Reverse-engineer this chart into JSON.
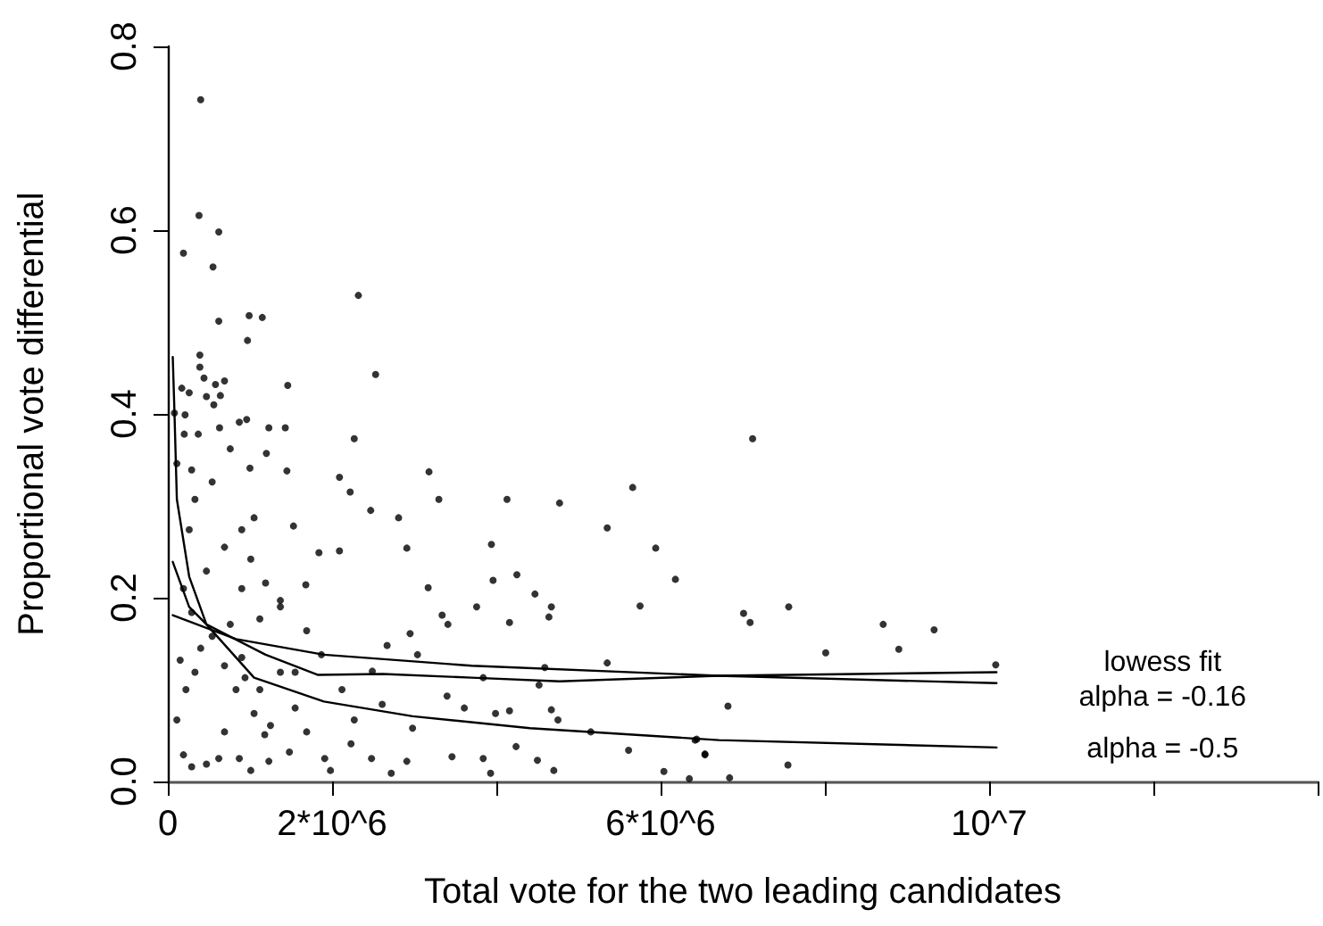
{
  "chart_data": {
    "type": "scatter",
    "xlabel": "Total vote for the two leading candidates",
    "ylabel": "Proportional vote differential",
    "xlim": [
      0,
      14000000
    ],
    "xticks": [
      0,
      {
        "value": 2000000,
        "label": "2*10^6"
      },
      {
        "value": 4000000,
        "label": null
      },
      {
        "value": 6000000,
        "label": "6*10^6"
      },
      {
        "value": 8000000,
        "label": null
      },
      {
        "value": 10000000,
        "label": "10^7"
      },
      {
        "value": 12000000,
        "label": null
      },
      {
        "value": 14000000,
        "label": null
      }
    ],
    "ylim": [
      0,
      0.8
    ],
    "yticks": [
      {
        "value": 0,
        "label": "0.0"
      },
      {
        "value": 0.2,
        "label": "0.2"
      },
      {
        "value": 0.4,
        "label": "0.4"
      },
      {
        "value": 0.6,
        "label": "0.6"
      },
      {
        "value": 0.8,
        "label": "0.8"
      }
    ],
    "grid": false,
    "legend": false,
    "series": [
      {
        "type": "scatter",
        "marker": "circle",
        "color": "#000000",
        "x": [
          400000,
          380000,
          620000,
          190000,
          550000,
          2320000,
          990000,
          1150000,
          620000,
          970000,
          390000,
          390000,
          2530000,
          440000,
          690000,
          580000,
          1460000,
          170000,
          260000,
          470000,
          640000,
          560000,
          210000,
          7120000,
          7010000,
          7090000,
          7560000,
          8710000,
          9330000,
          8010000,
          8900000,
          6820000,
          10080000,
          6540000,
          7550000,
          6420000,
          6840000,
          2270000,
          2090000,
          2220000,
          3180000,
          3300000,
          4130000,
          4770000,
          5660000,
          5350000,
          5940000,
          6180000,
          5750000,
          3940000,
          4250000,
          3960000,
          4470000,
          4670000,
          4640000,
          4160000,
          3760000,
          3170000,
          2910000,
          2470000,
          2810000,
          1530000,
          1450000,
          1000000,
          1200000,
          760000,
          2090000,
          1840000,
          1680000,
          1370000,
          1120000,
          3340000,
          3410000,
          2950000,
          2670000,
          3040000,
          2490000,
          3840000,
          4520000,
          5350000,
          4590000,
          3400000,
          3610000,
          3990000,
          4160000,
          4670000,
          4750000,
          5150000,
          5610000,
          6440000,
          6540000,
          6040000,
          6350000,
          4700000,
          4500000,
          4240000,
          3930000,
          3840000,
          3460000,
          2980000,
          2610000,
          2910000,
          2720000,
          2480000,
          2230000,
          1980000,
          2270000,
          2120000,
          1550000,
          1370000,
          1250000,
          1180000,
          1050000,
          900000,
          830000,
          690000,
          620000,
          470000,
          290000,
          190000,
          110000,
          220000,
          330000,
          150000,
          400000,
          540000,
          290000,
          190000,
          470000,
          690000,
          900000,
          260000,
          330000,
          110000,
          290000,
          540000,
          200000,
          370000,
          630000,
          870000,
          960000,
          1230000,
          1430000,
          1050000,
          1010000,
          1190000,
          1370000,
          900000,
          760000,
          690000,
          940000,
          1120000,
          1550000,
          1690000,
          1870000,
          1690000,
          1480000,
          1230000,
          1010000,
          870000,
          1910000,
          80000
        ],
        "values": [
          0.742,
          0.616,
          0.598,
          0.575,
          0.56,
          0.529,
          0.507,
          0.505,
          0.501,
          0.48,
          0.464,
          0.451,
          0.443,
          0.439,
          0.436,
          0.432,
          0.431,
          0.428,
          0.423,
          0.419,
          0.42,
          0.41,
          0.399,
          0.373,
          0.183,
          0.173,
          0.19,
          0.171,
          0.165,
          0.14,
          0.144,
          0.082,
          0.127,
          0.029,
          0.018,
          0.045,
          0.004,
          0.373,
          0.331,
          0.315,
          0.337,
          0.307,
          0.307,
          0.303,
          0.32,
          0.276,
          0.254,
          0.22,
          0.191,
          0.258,
          0.225,
          0.219,
          0.204,
          0.19,
          0.179,
          0.173,
          0.19,
          0.211,
          0.254,
          0.295,
          0.287,
          0.278,
          0.338,
          0.341,
          0.357,
          0.362,
          0.251,
          0.249,
          0.214,
          0.19,
          0.177,
          0.181,
          0.171,
          0.161,
          0.148,
          0.138,
          0.12,
          0.113,
          0.105,
          0.129,
          0.124,
          0.093,
          0.08,
          0.074,
          0.077,
          0.078,
          0.067,
          0.054,
          0.034,
          0.046,
          0.03,
          0.011,
          0.003,
          0.012,
          0.023,
          0.038,
          0.009,
          0.025,
          0.027,
          0.058,
          0.084,
          0.022,
          0.009,
          0.025,
          0.041,
          0.012,
          0.067,
          0.1,
          0.08,
          0.119,
          0.061,
          0.051,
          0.074,
          0.135,
          0.1,
          0.054,
          0.025,
          0.019,
          0.016,
          0.029,
          0.067,
          0.1,
          0.119,
          0.132,
          0.145,
          0.158,
          0.184,
          0.21,
          0.229,
          0.255,
          0.274,
          0.274,
          0.307,
          0.346,
          0.339,
          0.326,
          0.378,
          0.378,
          0.385,
          0.391,
          0.394,
          0.385,
          0.385,
          0.287,
          0.242,
          0.216,
          0.197,
          0.21,
          0.171,
          0.126,
          0.113,
          0.1,
          0.119,
          0.164,
          0.138,
          0.054,
          0.032,
          0.022,
          0.012,
          0.025,
          0.025,
          0.401
        ]
      },
      {
        "type": "line",
        "name": "lowess fit",
        "color": "#000000",
        "marker": "none",
        "line_style": "solid",
        "x": [
          60000,
          260000,
          470000,
          1190000,
          1830000,
          2620000,
          3700000,
          4770000,
          6700000,
          10090000
        ],
        "values": [
          0.239,
          0.19,
          0.171,
          0.138,
          0.116,
          0.117,
          0.113,
          0.109,
          0.115,
          0.119
        ]
      },
      {
        "type": "line",
        "name": "alpha = -0.16",
        "color": "#000000",
        "marker": "none",
        "line_style": "solid",
        "x": [
          60000,
          830000,
          1900000,
          3700000,
          6700000,
          10090000
        ],
        "values": [
          0.181,
          0.155,
          0.138,
          0.126,
          0.115,
          0.107
        ]
      },
      {
        "type": "line",
        "name": "alpha = -0.5",
        "color": "#000000",
        "marker": "none",
        "line_style": "solid",
        "x": [
          60000,
          80000,
          110000,
          260000,
          470000,
          1050000,
          1900000,
          2980000,
          4410000,
          6710000,
          10090000
        ],
        "values": [
          0.462,
          0.404,
          0.307,
          0.223,
          0.171,
          0.113,
          0.087,
          0.071,
          0.058,
          0.045,
          0.037
        ]
      }
    ]
  }
}
